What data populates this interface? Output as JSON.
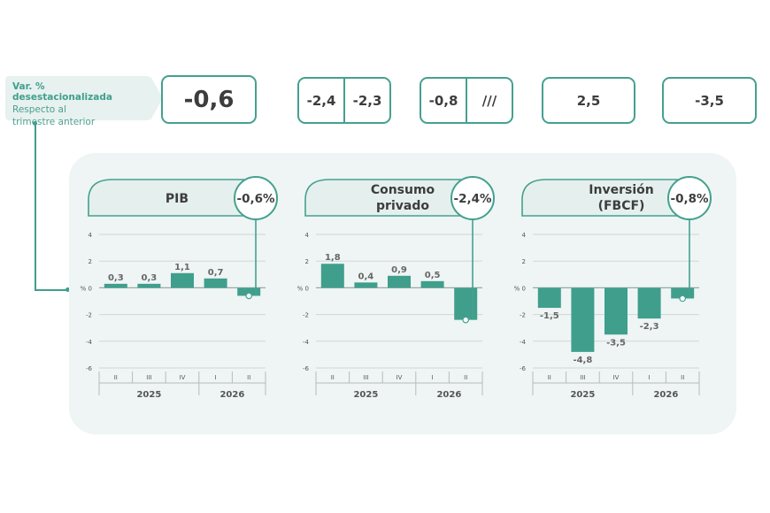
{
  "header": {
    "title": "Var. % desestacionalizada",
    "subtitle_line1": "Respecto al",
    "subtitle_line2": "trimestre anterior"
  },
  "summary_boxes": [
    {
      "values": [
        "-0,6"
      ]
    },
    {
      "values": [
        "-2,4",
        "-2,3"
      ]
    },
    {
      "values": [
        "-0,8",
        "///"
      ]
    },
    {
      "values": [
        "2,5"
      ]
    },
    {
      "values": [
        "-3,5"
      ]
    }
  ],
  "colors": {
    "bar": "#3f9f8c",
    "accent": "#45a08f",
    "panel": "#eef5f4",
    "header_fill": "#e5f0ee"
  },
  "chart_data": [
    {
      "type": "bar",
      "title": "PIB",
      "highlight": "-0,6%",
      "categories": [
        "II",
        "III",
        "IV",
        "I",
        "II"
      ],
      "values": [
        0.3,
        0.3,
        1.1,
        0.7,
        -0.6
      ],
      "value_labels": [
        "0,3",
        "0,3",
        "1,1",
        "0,7",
        ""
      ],
      "years": [
        "2025",
        "2026"
      ],
      "ylim": [
        -6,
        4
      ],
      "yticks": [
        "4",
        "2",
        "0",
        "-2",
        "-4",
        "-6"
      ],
      "ylabel": "%"
    },
    {
      "type": "bar",
      "title_line1": "Consumo",
      "title_line2": "privado",
      "highlight": "-2,4%",
      "categories": [
        "II",
        "III",
        "IV",
        "I",
        "II"
      ],
      "values": [
        1.8,
        0.4,
        0.9,
        0.5,
        -2.4
      ],
      "value_labels": [
        "1,8",
        "0,4",
        "0,9",
        "0,5",
        ""
      ],
      "years": [
        "2025",
        "2026"
      ],
      "ylim": [
        -6,
        4
      ],
      "yticks": [
        "4",
        "2",
        "0",
        "-2",
        "-4",
        "-6"
      ],
      "ylabel": "%"
    },
    {
      "type": "bar",
      "title_line1": "Inversión",
      "title_line2": "(FBCF)",
      "highlight": "-0,8%",
      "categories": [
        "II",
        "III",
        "IV",
        "I",
        "II"
      ],
      "values": [
        -1.5,
        -4.8,
        -3.5,
        -2.3,
        -0.8
      ],
      "value_labels": [
        "-1,5",
        "-4,8",
        "-3,5",
        "-2,3",
        ""
      ],
      "years": [
        "2025",
        "2026"
      ],
      "ylim": [
        -6,
        4
      ],
      "yticks": [
        "4",
        "2",
        "0",
        "-2",
        "-4",
        "-6"
      ],
      "ylabel": "%"
    }
  ]
}
